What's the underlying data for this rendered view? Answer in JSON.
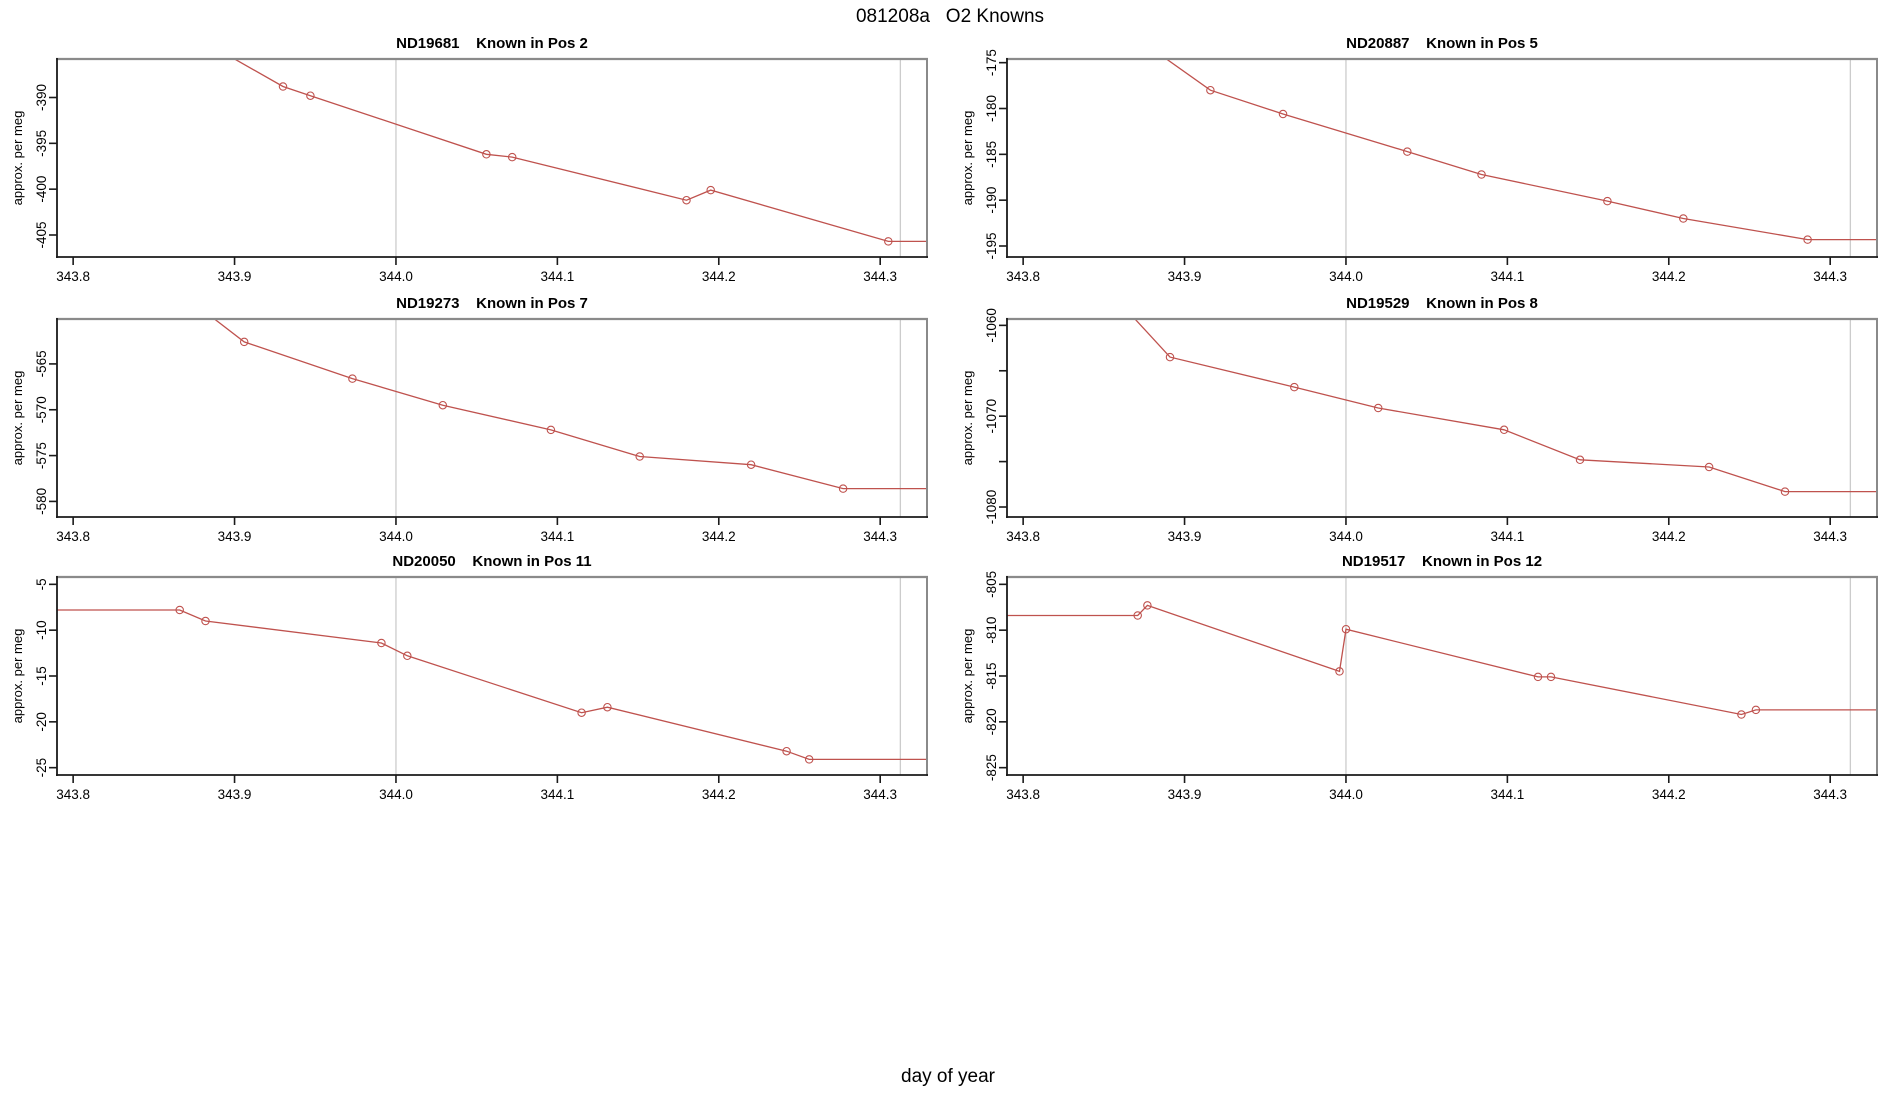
{
  "page": {
    "title": "081208a   O2 Knowns",
    "xlabel": "day of year"
  },
  "style": {
    "line_color": "#bf524e",
    "ref_line_color": "#cccccc",
    "box_top_right_color": "#8a8a8a",
    "box_bottom_left_color": "#1a1a1a",
    "tick_color": "#1a1a1a",
    "background": "#ffffff"
  },
  "chart_data": [
    {
      "type": "line",
      "sample_id": "ND19681",
      "known_position": 2,
      "title": "ND19681    Known in Pos 2",
      "xlabel": "day of year",
      "ylabel": "approx. per meg",
      "xlim": [
        343.79,
        344.329
      ],
      "ylim": [
        -407.4,
        -385.8
      ],
      "xticks": [
        343.8,
        343.9,
        344.0,
        344.1,
        344.2,
        344.3
      ],
      "xtick_labels": [
        "343.8",
        "343.9",
        "344.0",
        "344.1",
        "344.2",
        "344.3"
      ],
      "yticks": [
        -390,
        -395,
        -400,
        -405
      ],
      "ytick_labels": [
        "-390",
        "-395",
        "-400",
        "-405"
      ],
      "ref_lines_x": [
        344.0,
        344.3125
      ],
      "line": [
        [
          343.878,
          -383.6
        ],
        [
          343.93,
          -388.8
        ],
        [
          343.947,
          -389.8
        ],
        [
          344.056,
          -396.2
        ],
        [
          344.072,
          -396.5
        ],
        [
          344.18,
          -401.2
        ],
        [
          344.195,
          -400.1
        ],
        [
          344.305,
          -405.7
        ],
        [
          344.329,
          -405.7
        ]
      ],
      "markers": [
        [
          343.93,
          -388.8
        ],
        [
          343.947,
          -389.8
        ],
        [
          344.056,
          -396.2
        ],
        [
          344.072,
          -396.5
        ],
        [
          344.18,
          -401.2
        ],
        [
          344.195,
          -400.1
        ],
        [
          344.305,
          -405.7
        ]
      ]
    },
    {
      "type": "line",
      "sample_id": "ND20887",
      "known_position": 5,
      "title": "ND20887    Known in Pos 5",
      "xlabel": "day of year",
      "ylabel": "approx. per meg",
      "xlim": [
        343.79,
        344.329
      ],
      "ylim": [
        -196.2,
        -174.6
      ],
      "xticks": [
        343.8,
        343.9,
        344.0,
        344.1,
        344.2,
        344.3
      ],
      "xtick_labels": [
        "343.8",
        "343.9",
        "344.0",
        "344.1",
        "344.2",
        "344.3"
      ],
      "yticks": [
        -175,
        -180,
        -185,
        -190,
        -195
      ],
      "ytick_labels": [
        "-175",
        "-180",
        "-185",
        "-190",
        "-195"
      ],
      "ref_lines_x": [
        344.0,
        344.3125
      ],
      "line": [
        [
          343.868,
          -172.0
        ],
        [
          343.916,
          -178.0
        ],
        [
          343.961,
          -180.6
        ],
        [
          344.038,
          -184.7
        ],
        [
          344.084,
          -187.2
        ],
        [
          344.162,
          -190.1
        ],
        [
          344.209,
          -192.0
        ],
        [
          344.286,
          -194.3
        ],
        [
          344.329,
          -194.3
        ]
      ],
      "markers": [
        [
          343.916,
          -178.0
        ],
        [
          343.961,
          -180.6
        ],
        [
          344.038,
          -184.7
        ],
        [
          344.084,
          -187.2
        ],
        [
          344.162,
          -190.1
        ],
        [
          344.209,
          -192.0
        ],
        [
          344.286,
          -194.3
        ]
      ]
    },
    {
      "type": "line",
      "sample_id": "ND19273",
      "known_position": 7,
      "title": "ND19273    Known in Pos 7",
      "xlabel": "day of year",
      "ylabel": "approx. per meg",
      "xlim": [
        343.79,
        344.329
      ],
      "ylim": [
        -581.7,
        -560.1
      ],
      "xticks": [
        343.8,
        343.9,
        344.0,
        344.1,
        344.2,
        344.3
      ],
      "xtick_labels": [
        "343.8",
        "343.9",
        "344.0",
        "344.1",
        "344.2",
        "344.3"
      ],
      "yticks": [
        -565,
        -570,
        -575,
        -580
      ],
      "ytick_labels": [
        "-565",
        "-570",
        "-575",
        "-580"
      ],
      "ref_lines_x": [
        344.0,
        344.3125
      ],
      "line": [
        [
          343.872,
          -558.0
        ],
        [
          343.906,
          -562.6
        ],
        [
          343.973,
          -566.6
        ],
        [
          344.029,
          -569.5
        ],
        [
          344.096,
          -572.2
        ],
        [
          344.151,
          -575.1
        ],
        [
          344.22,
          -576.0
        ],
        [
          344.277,
          -578.6
        ],
        [
          344.329,
          -578.6
        ]
      ],
      "markers": [
        [
          343.906,
          -562.6
        ],
        [
          343.973,
          -566.6
        ],
        [
          344.029,
          -569.5
        ],
        [
          344.096,
          -572.2
        ],
        [
          344.151,
          -575.1
        ],
        [
          344.22,
          -576.0
        ],
        [
          344.277,
          -578.6
        ]
      ]
    },
    {
      "type": "line",
      "sample_id": "ND19529",
      "known_position": 8,
      "title": "ND19529    Known in Pos 8",
      "xlabel": "day of year",
      "ylabel": "approx. per meg",
      "xlim": [
        343.79,
        344.329
      ],
      "ylim": [
        -1081.1,
        -1059.3
      ],
      "xticks": [
        343.8,
        343.9,
        344.0,
        344.1,
        344.2,
        344.3
      ],
      "xtick_labels": [
        "343.8",
        "343.9",
        "344.0",
        "344.1",
        "344.2",
        "344.3"
      ],
      "yticks": [
        -1060,
        -1065,
        -1070,
        -1075,
        -1080
      ],
      "ytick_labels": [
        "-1060",
        "",
        "-1070",
        "",
        "-1080"
      ],
      "ref_lines_x": [
        344.0,
        344.3125
      ],
      "line": [
        [
          343.86,
          -1057.5
        ],
        [
          343.891,
          -1063.5
        ],
        [
          343.968,
          -1066.8
        ],
        [
          344.02,
          -1069.1
        ],
        [
          344.098,
          -1071.5
        ],
        [
          344.145,
          -1074.8
        ],
        [
          344.225,
          -1075.6
        ],
        [
          344.272,
          -1078.3
        ],
        [
          344.329,
          -1078.3
        ]
      ],
      "markers": [
        [
          343.891,
          -1063.5
        ],
        [
          343.968,
          -1066.8
        ],
        [
          344.02,
          -1069.1
        ],
        [
          344.098,
          -1071.5
        ],
        [
          344.145,
          -1074.8
        ],
        [
          344.225,
          -1075.6
        ],
        [
          344.272,
          -1078.3
        ]
      ]
    },
    {
      "type": "line",
      "sample_id": "ND20050",
      "known_position": 11,
      "title": "ND20050    Known in Pos 11",
      "xlabel": "day of year",
      "ylabel": "approx. per meg",
      "xlim": [
        343.79,
        344.329
      ],
      "ylim": [
        -25.8,
        -4.2
      ],
      "xticks": [
        343.8,
        343.9,
        344.0,
        344.1,
        344.2,
        344.3
      ],
      "xtick_labels": [
        "343.8",
        "343.9",
        "344.0",
        "344.1",
        "344.2",
        "344.3"
      ],
      "yticks": [
        -5,
        -10,
        -15,
        -20,
        -25
      ],
      "ytick_labels": [
        "-5",
        "-10",
        "-15",
        "-20",
        "-25"
      ],
      "ref_lines_x": [
        344.0,
        344.3125
      ],
      "line": [
        [
          343.79,
          -7.8
        ],
        [
          343.866,
          -7.8
        ],
        [
          343.882,
          -9.0
        ],
        [
          343.991,
          -11.4
        ],
        [
          344.007,
          -12.8
        ],
        [
          344.115,
          -19.0
        ],
        [
          344.131,
          -18.4
        ],
        [
          344.242,
          -23.2
        ],
        [
          344.256,
          -24.1
        ],
        [
          344.329,
          -24.1
        ]
      ],
      "markers": [
        [
          343.866,
          -7.8
        ],
        [
          343.882,
          -9.0
        ],
        [
          343.991,
          -11.4
        ],
        [
          344.007,
          -12.8
        ],
        [
          344.115,
          -19.0
        ],
        [
          344.131,
          -18.4
        ],
        [
          344.242,
          -23.2
        ],
        [
          344.256,
          -24.1
        ]
      ]
    },
    {
      "type": "line",
      "sample_id": "ND19517",
      "known_position": 12,
      "title": "ND19517    Known in Pos 12",
      "xlabel": "day of year",
      "ylabel": "approx. per meg",
      "xlim": [
        343.79,
        344.329
      ],
      "ylim": [
        -825.8,
        -804.2
      ],
      "xticks": [
        343.8,
        343.9,
        344.0,
        344.1,
        344.2,
        344.3
      ],
      "xtick_labels": [
        "343.8",
        "343.9",
        "344.0",
        "344.1",
        "344.2",
        "344.3"
      ],
      "yticks": [
        -805,
        -810,
        -815,
        -820,
        -825
      ],
      "ytick_labels": [
        "-805",
        "-810",
        "-815",
        "-820",
        "-825"
      ],
      "ref_lines_x": [
        344.0,
        344.3125
      ],
      "line": [
        [
          343.79,
          -808.4
        ],
        [
          343.871,
          -808.4
        ],
        [
          343.877,
          -807.3
        ],
        [
          343.996,
          -814.5
        ],
        [
          344.0,
          -809.9
        ],
        [
          344.119,
          -815.1
        ],
        [
          344.127,
          -815.1
        ],
        [
          344.245,
          -819.2
        ],
        [
          344.254,
          -818.7
        ],
        [
          344.329,
          -818.7
        ]
      ],
      "markers": [
        [
          343.871,
          -808.4
        ],
        [
          343.877,
          -807.3
        ],
        [
          343.996,
          -814.5
        ],
        [
          344.0,
          -809.9
        ],
        [
          344.119,
          -815.1
        ],
        [
          344.127,
          -815.1
        ],
        [
          344.245,
          -819.2
        ],
        [
          344.254,
          -818.7
        ]
      ]
    }
  ]
}
